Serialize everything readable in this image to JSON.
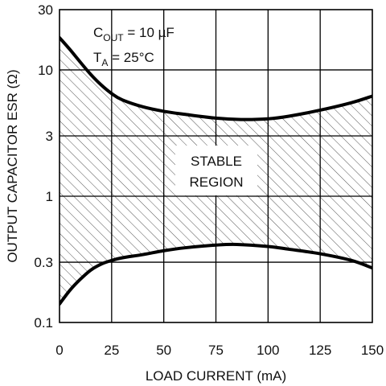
{
  "chart_data": {
    "type": "line",
    "xlabel": "LOAD CURRENT (mA)",
    "ylabel": "OUTPUT CAPACITOR ESR (Ω)",
    "x_ticks": [
      0,
      25,
      50,
      75,
      100,
      125,
      150
    ],
    "x_tick_labels": [
      "0",
      "25",
      "50",
      "75",
      "100",
      "125",
      "150"
    ],
    "y_ticks": [
      0.1,
      0.3,
      1,
      3,
      10,
      30
    ],
    "y_tick_labels": [
      "0.1",
      "0.3",
      "1",
      "3",
      "10",
      "30"
    ],
    "xlim": [
      0,
      150
    ],
    "ylim": [
      0.1,
      30
    ],
    "y_scale": "log",
    "grid": true,
    "shaded_region_label": [
      "STABLE",
      "REGION"
    ],
    "conditions": {
      "cap_prefix": "C",
      "cap_sub": "OUT",
      "cap_value": " = 10 µF",
      "temp_prefix": "T",
      "temp_sub": "A",
      "temp_value": " = 25°C"
    },
    "series": [
      {
        "x": [
          0,
          5,
          10,
          15,
          20,
          25,
          30,
          40,
          50,
          60,
          75,
          87,
          100,
          110,
          125,
          140,
          150
        ],
        "y": [
          18,
          14.5,
          11.5,
          9.2,
          7.6,
          6.5,
          5.8,
          5.1,
          4.7,
          4.45,
          4.15,
          4.05,
          4.1,
          4.3,
          4.8,
          5.5,
          6.2
        ]
      },
      {
        "x": [
          0,
          5,
          10,
          15,
          20,
          25,
          30,
          40,
          50,
          60,
          75,
          85,
          100,
          110,
          125,
          140,
          150
        ],
        "y": [
          0.14,
          0.18,
          0.22,
          0.26,
          0.29,
          0.31,
          0.325,
          0.345,
          0.37,
          0.39,
          0.41,
          0.415,
          0.4,
          0.38,
          0.35,
          0.31,
          0.27
        ]
      }
    ]
  }
}
